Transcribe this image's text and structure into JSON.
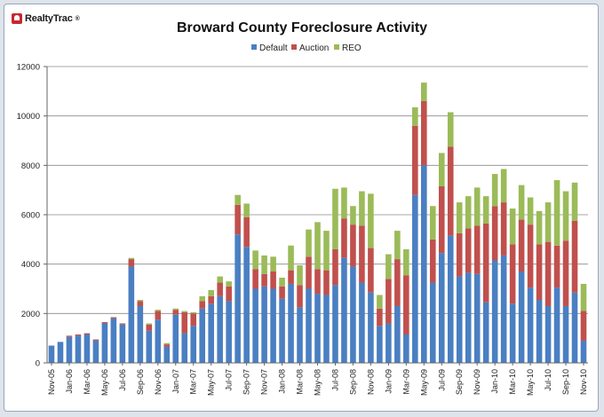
{
  "logo": {
    "text": "RealtyTrac",
    "reg_mark": "®"
  },
  "colors": {
    "Default": "#4a7fc2",
    "Auction": "#c0504d",
    "REO": "#9bbb59"
  },
  "chart_data": {
    "type": "bar",
    "stacked": true,
    "title": "Broward County Foreclosure Activity",
    "legend_position": "top",
    "ylim": [
      0,
      12000
    ],
    "yticks": [
      0,
      2000,
      4000,
      6000,
      8000,
      10000,
      12000
    ],
    "categories": [
      "Nov-05",
      "Dec-05",
      "Jan-06",
      "Feb-06",
      "Mar-06",
      "Apr-06",
      "May-06",
      "Jun-06",
      "Jul-06",
      "Aug-06",
      "Sep-06",
      "Oct-06",
      "Nov-06",
      "Dec-06",
      "Jan-07",
      "Feb-07",
      "Mar-07",
      "Apr-07",
      "May-07",
      "Jun-07",
      "Jul-07",
      "Aug-07",
      "Sep-07",
      "Oct-07",
      "Nov-07",
      "Dec-07",
      "Jan-08",
      "Feb-08",
      "Mar-08",
      "Apr-08",
      "May-08",
      "Jun-08",
      "Jul-08",
      "Aug-08",
      "Sep-08",
      "Oct-08",
      "Nov-08",
      "Dec-08",
      "Jan-09",
      "Feb-09",
      "Mar-09",
      "Apr-09",
      "May-09",
      "Jun-09",
      "Jul-09",
      "Aug-09",
      "Sep-09",
      "Oct-09",
      "Nov-09",
      "Dec-09",
      "Jan-10",
      "Feb-10",
      "Mar-10",
      "Apr-10",
      "May-10",
      "Jun-10",
      "Jul-10",
      "Aug-10",
      "Sep-10",
      "Oct-10",
      "Nov-10"
    ],
    "x_tick_labels": [
      "Nov-05",
      "Jan-06",
      "Mar-06",
      "May-06",
      "Jul-06",
      "Sep-06",
      "Nov-06",
      "Jan-07",
      "Mar-07",
      "May-07",
      "Jul-07",
      "Sep-07",
      "Nov-07",
      "Jan-08",
      "Mar-08",
      "May-08",
      "Jul-08",
      "Sep-08",
      "Nov-08",
      "Jan-09",
      "Mar-09",
      "May-09",
      "Jul-09",
      "Sep-09",
      "Nov-09",
      "Jan-10",
      "Mar-10",
      "May-10",
      "Jul-10",
      "Sep-10",
      "Nov-10"
    ],
    "series": [
      {
        "name": "Default",
        "values": [
          700,
          850,
          1050,
          1100,
          1150,
          900,
          1600,
          1800,
          1550,
          3900,
          2300,
          1300,
          1750,
          650,
          1950,
          1200,
          1500,
          2200,
          2400,
          2700,
          2500,
          5200,
          4700,
          3000,
          3100,
          3000,
          2600,
          3200,
          2250,
          3000,
          2800,
          2750,
          3150,
          4250,
          3900,
          3250,
          2850,
          1500,
          1600,
          2300,
          1150,
          6800,
          8000,
          3250,
          4450,
          5150,
          3500,
          3650,
          3600,
          2450,
          4150,
          4350,
          2400,
          3700,
          3050,
          2550,
          2300,
          3050,
          2300,
          2850,
          900
        ]
      },
      {
        "name": "Auction",
        "values": [
          0,
          0,
          50,
          50,
          50,
          50,
          50,
          50,
          50,
          300,
          200,
          250,
          350,
          100,
          200,
          850,
          500,
          300,
          300,
          550,
          600,
          1200,
          1200,
          800,
          500,
          700,
          500,
          550,
          900,
          1300,
          1000,
          1000,
          1450,
          1600,
          1700,
          2300,
          1800,
          700,
          1800,
          1900,
          2400,
          2800,
          2600,
          1750,
          2700,
          3600,
          1750,
          1800,
          1950,
          3200,
          2200,
          2150,
          2400,
          2100,
          2550,
          2250,
          2600,
          1700,
          2650,
          2900,
          1200
        ]
      },
      {
        "name": "REO",
        "values": [
          0,
          0,
          0,
          0,
          0,
          0,
          0,
          0,
          0,
          50,
          50,
          50,
          50,
          50,
          50,
          50,
          50,
          200,
          250,
          250,
          200,
          400,
          550,
          750,
          750,
          600,
          350,
          1000,
          800,
          1100,
          1900,
          1600,
          2450,
          1250,
          750,
          1400,
          2200,
          550,
          1000,
          1150,
          1050,
          750,
          750,
          1350,
          1350,
          1400,
          1250,
          1300,
          1550,
          1100,
          1300,
          1350,
          1450,
          1400,
          1100,
          1350,
          1600,
          2650,
          2000,
          1550,
          1100
        ]
      }
    ]
  }
}
